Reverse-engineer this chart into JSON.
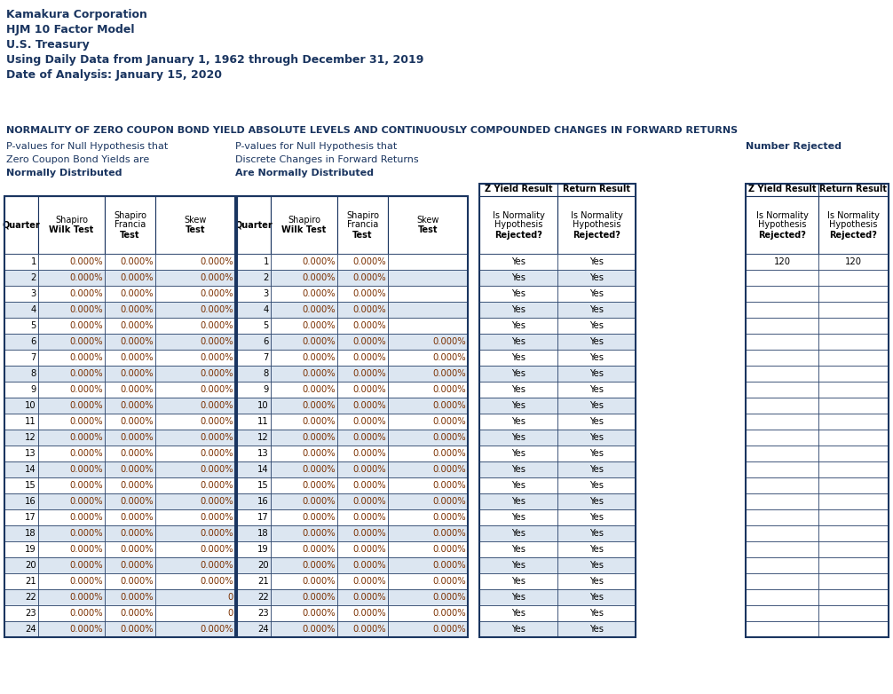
{
  "header_lines": [
    "Kamakura Corporation",
    "HJM 10 Factor Model",
    "U.S. Treasury",
    "Using Daily Data from January 1, 1962 through December 31, 2019",
    "Date of Analysis: January 15, 2020"
  ],
  "section_title": "NORMALITY OF ZERO COUPON BOND YIELD ABSOLUTE LEVELS AND CONTINUOUSLY COMPOUNDED CHANGES IN FORWARD RETURNS",
  "left_label1": "P-values for Null Hypothesis that",
  "left_label2": "Zero Coupon Bond Yields are",
  "left_label3": "Normally Distributed",
  "mid_label1": "P-values for Null Hypothesis that",
  "mid_label2": "Discrete Changes in Forward Returns",
  "mid_label3": "Are Normally Distributed",
  "right_label": "Number Rejected",
  "num_rows": 24,
  "quarters": [
    1,
    2,
    3,
    4,
    5,
    6,
    7,
    8,
    9,
    10,
    11,
    12,
    13,
    14,
    15,
    16,
    17,
    18,
    19,
    20,
    21,
    22,
    23,
    24
  ],
  "t1_sw": [
    "0.000%",
    "0.000%",
    "0.000%",
    "0.000%",
    "0.000%",
    "0.000%",
    "0.000%",
    "0.000%",
    "0.000%",
    "0.000%",
    "0.000%",
    "0.000%",
    "0.000%",
    "0.000%",
    "0.000%",
    "0.000%",
    "0.000%",
    "0.000%",
    "0.000%",
    "0.000%",
    "0.000%",
    "0.000%",
    "0.000%",
    "0.000%"
  ],
  "t1_sf": [
    "0.000%",
    "0.000%",
    "0.000%",
    "0.000%",
    "0.000%",
    "0.000%",
    "0.000%",
    "0.000%",
    "0.000%",
    "0.000%",
    "0.000%",
    "0.000%",
    "0.000%",
    "0.000%",
    "0.000%",
    "0.000%",
    "0.000%",
    "0.000%",
    "0.000%",
    "0.000%",
    "0.000%",
    "0.000%",
    "0.000%",
    "0.000%"
  ],
  "t1_sk": [
    "0.000%",
    "0.000%",
    "0.000%",
    "0.000%",
    "0.000%",
    "0.000%",
    "0.000%",
    "0.000%",
    "0.000%",
    "0.000%",
    "0.000%",
    "0.000%",
    "0.000%",
    "0.000%",
    "0.000%",
    "0.000%",
    "0.000%",
    "0.000%",
    "0.000%",
    "0.000%",
    "0.000%",
    "0",
    "0",
    "0.000%"
  ],
  "t2_sw": [
    "0.000%",
    "0.000%",
    "0.000%",
    "0.000%",
    "0.000%",
    "0.000%",
    "0.000%",
    "0.000%",
    "0.000%",
    "0.000%",
    "0.000%",
    "0.000%",
    "0.000%",
    "0.000%",
    "0.000%",
    "0.000%",
    "0.000%",
    "0.000%",
    "0.000%",
    "0.000%",
    "0.000%",
    "0.000%",
    "0.000%",
    "0.000%"
  ],
  "t2_sf": [
    "0.000%",
    "0.000%",
    "0.000%",
    "0.000%",
    "0.000%",
    "0.000%",
    "0.000%",
    "0.000%",
    "0.000%",
    "0.000%",
    "0.000%",
    "0.000%",
    "0.000%",
    "0.000%",
    "0.000%",
    "0.000%",
    "0.000%",
    "0.000%",
    "0.000%",
    "0.000%",
    "0.000%",
    "0.000%",
    "0.000%",
    "0.000%"
  ],
  "t2_sk": [
    "",
    "",
    "",
    "",
    "",
    "0.000%",
    "0.000%",
    "0.000%",
    "0.000%",
    "0.000%",
    "0.000%",
    "0.000%",
    "0.000%",
    "0.000%",
    "0.000%",
    "0.000%",
    "0.000%",
    "0.000%",
    "0.000%",
    "0.000%",
    "0.000%",
    "0.000%",
    "0.000%",
    "0.000%"
  ],
  "zy_result": [
    "Yes",
    "Yes",
    "Yes",
    "Yes",
    "Yes",
    "Yes",
    "Yes",
    "Yes",
    "Yes",
    "Yes",
    "Yes",
    "Yes",
    "Yes",
    "Yes",
    "Yes",
    "Yes",
    "Yes",
    "Yes",
    "Yes",
    "Yes",
    "Yes",
    "Yes",
    "Yes",
    "Yes"
  ],
  "ret_result": [
    "Yes",
    "Yes",
    "Yes",
    "Yes",
    "Yes",
    "Yes",
    "Yes",
    "Yes",
    "Yes",
    "Yes",
    "Yes",
    "Yes",
    "Yes",
    "Yes",
    "Yes",
    "Yes",
    "Yes",
    "Yes",
    "Yes",
    "Yes",
    "Yes",
    "Yes",
    "Yes",
    "Yes"
  ],
  "nr_z": "120",
  "nr_ret": "120",
  "bg": "#ffffff",
  "dark_blue": "#1a3560",
  "alt_row": "#dce6f1",
  "orange": "#7b3000",
  "border": "#1a3560"
}
